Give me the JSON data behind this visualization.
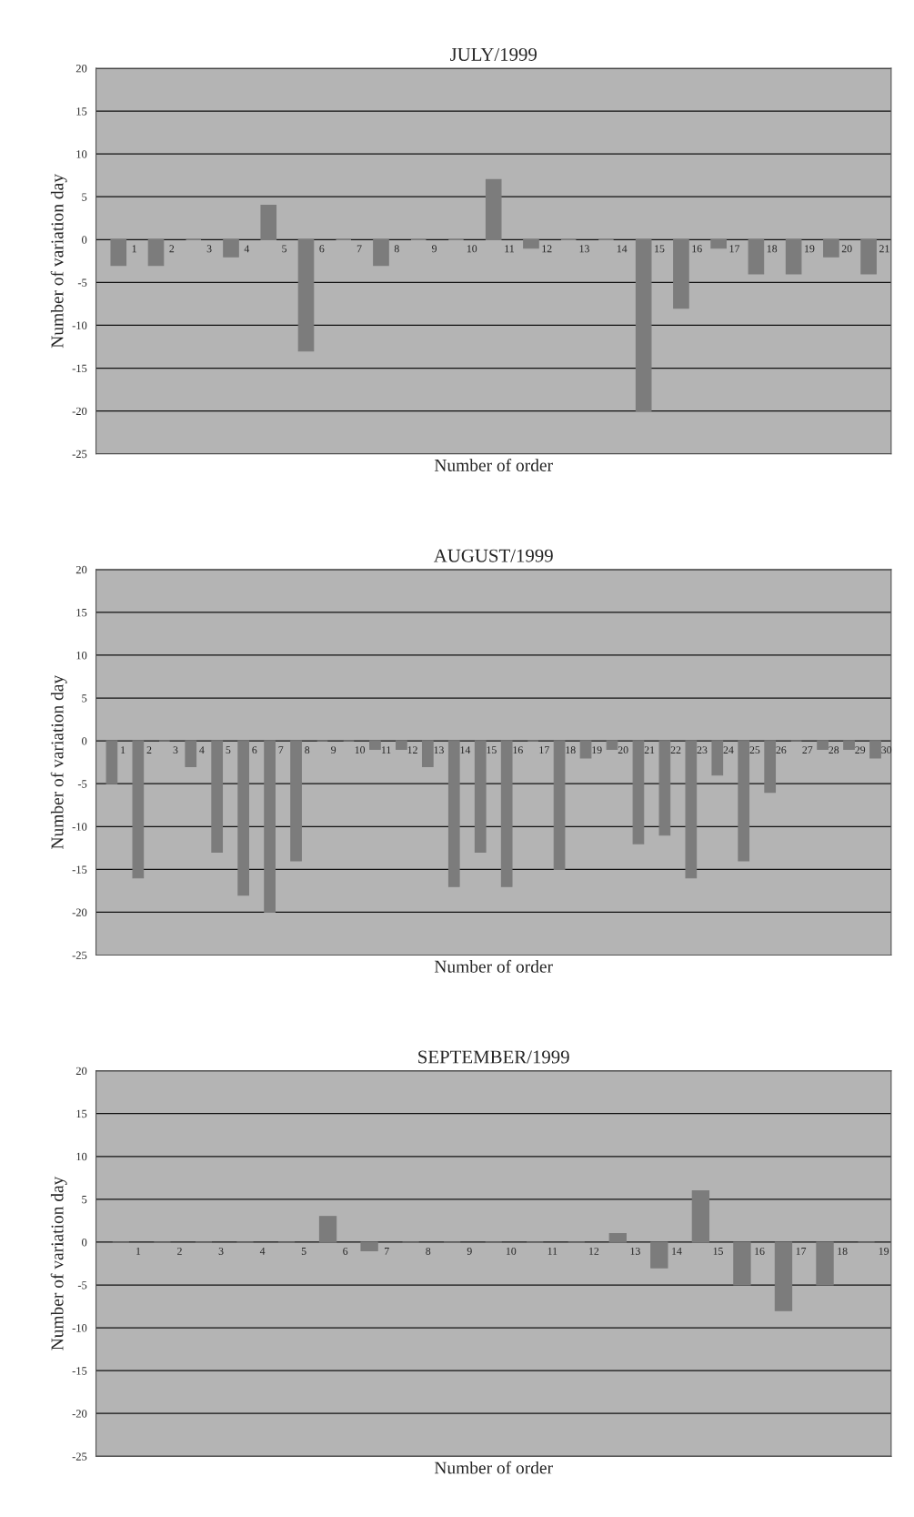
{
  "chart_data": [
    {
      "type": "bar",
      "title": "JULY/1999",
      "xlabel": "Number of order",
      "ylabel": "Number of variation day",
      "categories": [
        "1",
        "2",
        "3",
        "4",
        "5",
        "6",
        "7",
        "8",
        "9",
        "10",
        "11",
        "12",
        "13",
        "14",
        "15",
        "16",
        "17",
        "18",
        "19",
        "20",
        "21"
      ],
      "values": [
        -3,
        -3,
        0,
        -2,
        4,
        -13,
        0,
        -3,
        0,
        0,
        7,
        -1,
        0,
        0,
        -20,
        -8,
        -1,
        -4,
        -4,
        -2,
        -4
      ],
      "color": "#7c7c7c",
      "ylim": [
        -25,
        20
      ],
      "yticks": [
        -25,
        -20,
        -15,
        -10,
        -5,
        0,
        5,
        10,
        15,
        20
      ],
      "grid": "y"
    },
    {
      "type": "bar",
      "title": "AUGUST/1999",
      "xlabel": "Number of order",
      "ylabel": "Number of variation day",
      "categories": [
        "1",
        "2",
        "3",
        "4",
        "5",
        "6",
        "7",
        "8",
        "9",
        "10",
        "11",
        "12",
        "13",
        "14",
        "15",
        "16",
        "17",
        "18",
        "19",
        "20",
        "21",
        "22",
        "23",
        "24",
        "25",
        "26",
        "27",
        "28",
        "29",
        "30"
      ],
      "values": [
        -5,
        -16,
        0,
        -3,
        -13,
        -18,
        -20,
        -14,
        0,
        0,
        -1,
        -1,
        -3,
        -17,
        -13,
        -17,
        0,
        -15,
        -2,
        -1,
        -12,
        -11,
        -16,
        -4,
        -14,
        -6,
        0,
        -1,
        -1,
        -2
      ],
      "color": "#7c7c7c",
      "ylim": [
        -25,
        20
      ],
      "yticks": [
        -25,
        -20,
        -15,
        -10,
        -5,
        0,
        5,
        10,
        15,
        20
      ],
      "grid": "y"
    },
    {
      "type": "bar",
      "title": "SEPTEMBER/1999",
      "xlabel": "Number of order",
      "ylabel": "Number of variation day",
      "categories": [
        "1",
        "2",
        "3",
        "4",
        "5",
        "6",
        "7",
        "8",
        "9",
        "10",
        "11",
        "12",
        "13",
        "14",
        "15",
        "16",
        "17",
        "18",
        "19"
      ],
      "values": [
        0,
        0,
        0,
        0,
        0,
        3,
        -1,
        0,
        0,
        0,
        0,
        0,
        1,
        -3,
        6,
        -5,
        -8,
        -5,
        0
      ],
      "color": "#7c7c7c",
      "ylim": [
        -25,
        20
      ],
      "yticks": [
        -25,
        -20,
        -15,
        -10,
        -5,
        0,
        5,
        10,
        15,
        20
      ],
      "grid": "y"
    }
  ]
}
